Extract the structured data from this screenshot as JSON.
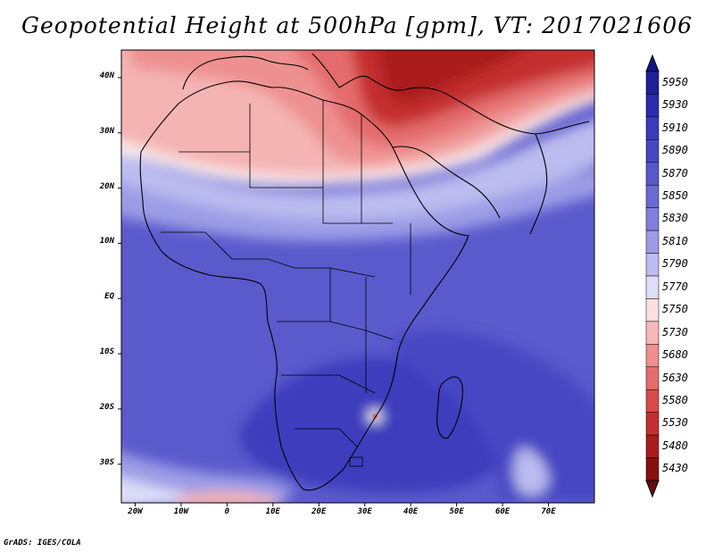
{
  "title": "Geopotential Height at 500hPa [gpm], VT: 2017021606",
  "credit": "GrADS: IGES/COLA",
  "lat_labels": [
    "40N",
    "30N",
    "20N",
    "10N",
    "EQ",
    "10S",
    "20S",
    "30S"
  ],
  "lon_labels": [
    "20W",
    "10W",
    "0",
    "10E",
    "20E",
    "30E",
    "40E",
    "50E",
    "60E",
    "70E"
  ],
  "colorbar": {
    "levels": [
      "5950",
      "5930",
      "5910",
      "5890",
      "5870",
      "5850",
      "5830",
      "5810",
      "5790",
      "5770",
      "5750",
      "5730",
      "5680",
      "5630",
      "5580",
      "5530",
      "5480",
      "5430"
    ],
    "colors": [
      "#1f1f9a",
      "#2b2bae",
      "#3a3abc",
      "#4747c4",
      "#5858cc",
      "#6a6ad4",
      "#8080dc",
      "#9c9ce6",
      "#bcbcf0",
      "#dedef8",
      "#fbe0e0",
      "#f6b8b8",
      "#ee9090",
      "#e46c6c",
      "#d84a4a",
      "#c42e2e",
      "#aa1c1c",
      "#8a1010"
    ],
    "top_color": "#141480",
    "bottom_color": "#6a0a0a"
  },
  "field_colors": {
    "deep_blue": "#3c3cbe",
    "mid_blue": "#5a5acc",
    "light_blue": "#8e8ee0",
    "pale_blue": "#d6d6f4",
    "white": "#fdf0f0",
    "pale_red": "#f4b4b4",
    "mid_red": "#e46c6c",
    "deep_red": "#b01c1c"
  }
}
